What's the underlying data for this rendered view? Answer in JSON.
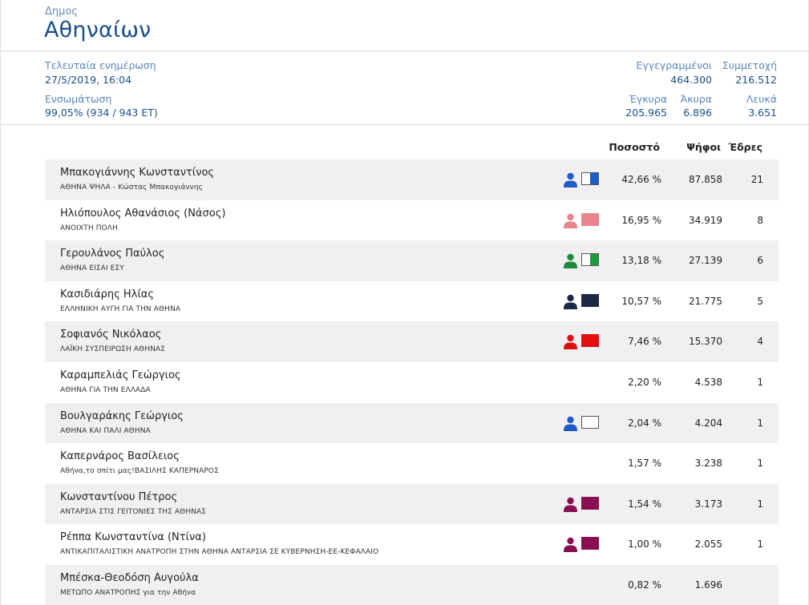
{
  "header": {
    "label": "Δημος",
    "title": "Αθηναίων"
  },
  "stats": {
    "last_update_label": "Τελευταία ενημέρωση",
    "last_update_value": "27/5/2019, 16:04",
    "integration_label": "Ενσωμάτωση",
    "integration_value": "99,05% (934 / 943 ΕΤ)",
    "registered_label": "Εγγεγραμμένοι",
    "registered_value": "464.300",
    "turnout_label": "Συμμετοχή",
    "turnout_value": "216.512",
    "valid_label": "Έγκυρα",
    "valid_value": "205.965",
    "invalid_label": "Άκυρα",
    "invalid_value": "6.896",
    "blank_label": "Λευκά",
    "blank_value": "3.651"
  },
  "columns": {
    "percent": "Ποσοστό",
    "votes": "Ψήφοι",
    "seats": "Έδρες"
  },
  "rows": [
    {
      "candidate": "Μπακογιάννης Κωνσταντίνος",
      "party": "ΑΘΗΝΑ ΨΗΛΑ - Κώστας Μπακογιάννης",
      "percent": "42,66 %",
      "votes": "87.858",
      "seats": "21",
      "icon": true,
      "color": "#1f5cc7",
      "flag": [
        "#ffffff",
        "#1f5cc7"
      ]
    },
    {
      "candidate": "Ηλιόπουλος Αθανάσιος (Νάσος)",
      "party": "ΑΝΟΙΧΤΗ ΠΟΛΗ",
      "percent": "16,95 %",
      "votes": "34.919",
      "seats": "8",
      "icon": true,
      "color": "#e8848e",
      "flag": [
        "#e8848e",
        "#e8848e"
      ]
    },
    {
      "candidate": "Γερουλάνος Παύλος",
      "party": "ΑΘΗΝΑ ΕΙΣΑΙ ΕΣΥ",
      "percent": "13,18 %",
      "votes": "27.139",
      "seats": "6",
      "icon": true,
      "color": "#1e8a3c",
      "flag": [
        "#ffffff",
        "#1e9a3c"
      ]
    },
    {
      "candidate": "Κασιδιάρης Ηλίας",
      "party": "ΕΛΛΗΝΙΚΗ ΑΥΓΗ ΓΙΑ ΤΗΝ ΑΘΗΝΑ",
      "percent": "10,57 %",
      "votes": "21.775",
      "seats": "5",
      "icon": true,
      "color": "#1c2a48",
      "flag": [
        "#1c2a48",
        "#1c2a48"
      ]
    },
    {
      "candidate": "Σοφιανός Νικόλαος",
      "party": "ΛΑΪΚΗ ΣΥΣΠΕΙΡΩΣΗ ΑΘΗΝΑΣ",
      "percent": "7,46 %",
      "votes": "15.370",
      "seats": "4",
      "icon": true,
      "color": "#e01010",
      "flag": [
        "#e01010",
        "#e01010"
      ]
    },
    {
      "candidate": "Καραμπελιάς Γεώργιος",
      "party": "ΑΘΗΝΑ ΓΙΑ ΤΗΝ ΕΛΛΑΔΑ",
      "percent": "2,20 %",
      "votes": "4.538",
      "seats": "1",
      "icon": false
    },
    {
      "candidate": "Βουλγαράκης Γεώργιος",
      "party": "ΑΘΗΝΑ ΚΑΙ ΠΑΛΙ ΑΘΗΝΑ",
      "percent": "2,04 %",
      "votes": "4.204",
      "seats": "1",
      "icon": true,
      "color": "#1f5cc7",
      "flag": [
        "#ffffff",
        "#ffffff"
      ]
    },
    {
      "candidate": "Καπερνάρος Βασίλειος",
      "party": "Αθήνα,το σπίτι μας!ΒΑΣΙΛΗΣ ΚΑΠΕΡΝΑΡΟΣ",
      "percent": "1,57 %",
      "votes": "3.238",
      "seats": "1",
      "icon": false
    },
    {
      "candidate": "Κωνσταντίνου Πέτρος",
      "party": "ΑΝΤΑΡΣΙΑ ΣΤΙΣ ΓΕΙΤΟΝΙΕΣ ΤΗΣ ΑΘΗΝΑΣ",
      "percent": "1,54 %",
      "votes": "3.173",
      "seats": "1",
      "icon": true,
      "color": "#8a0f52",
      "flag": [
        "#8a0f52",
        "#8a0f52"
      ]
    },
    {
      "candidate": "Ρέππα Κωνσταντίνα (Ντίνα)",
      "party": "ΑΝΤΙΚΑΠΙΤΑΛΙΣΤΙΚΗ ΑΝΑΤΡΟΠΗ ΣΤΗΝ ΑΘΗΝΑ ΑΝΤΑΡΣΙΑ ΣΕ ΚΥΒΕΡΝΗΣΗ-ΕΕ-ΚΕΦΑΛΑΙΟ",
      "percent": "1,00 %",
      "votes": "2.055",
      "seats": "1",
      "icon": true,
      "color": "#8a0f52",
      "flag": [
        "#8a0f52",
        "#8a0f52"
      ]
    },
    {
      "candidate": "Μπέσκα-Θεοδόση Αυγούλα",
      "party": "ΜΕΤΩΠΟ ΑΝΑΤΡΟΠΗΣ για την Αθήνα",
      "percent": "0,82 %",
      "votes": "1.696",
      "seats": "",
      "icon": false
    }
  ]
}
